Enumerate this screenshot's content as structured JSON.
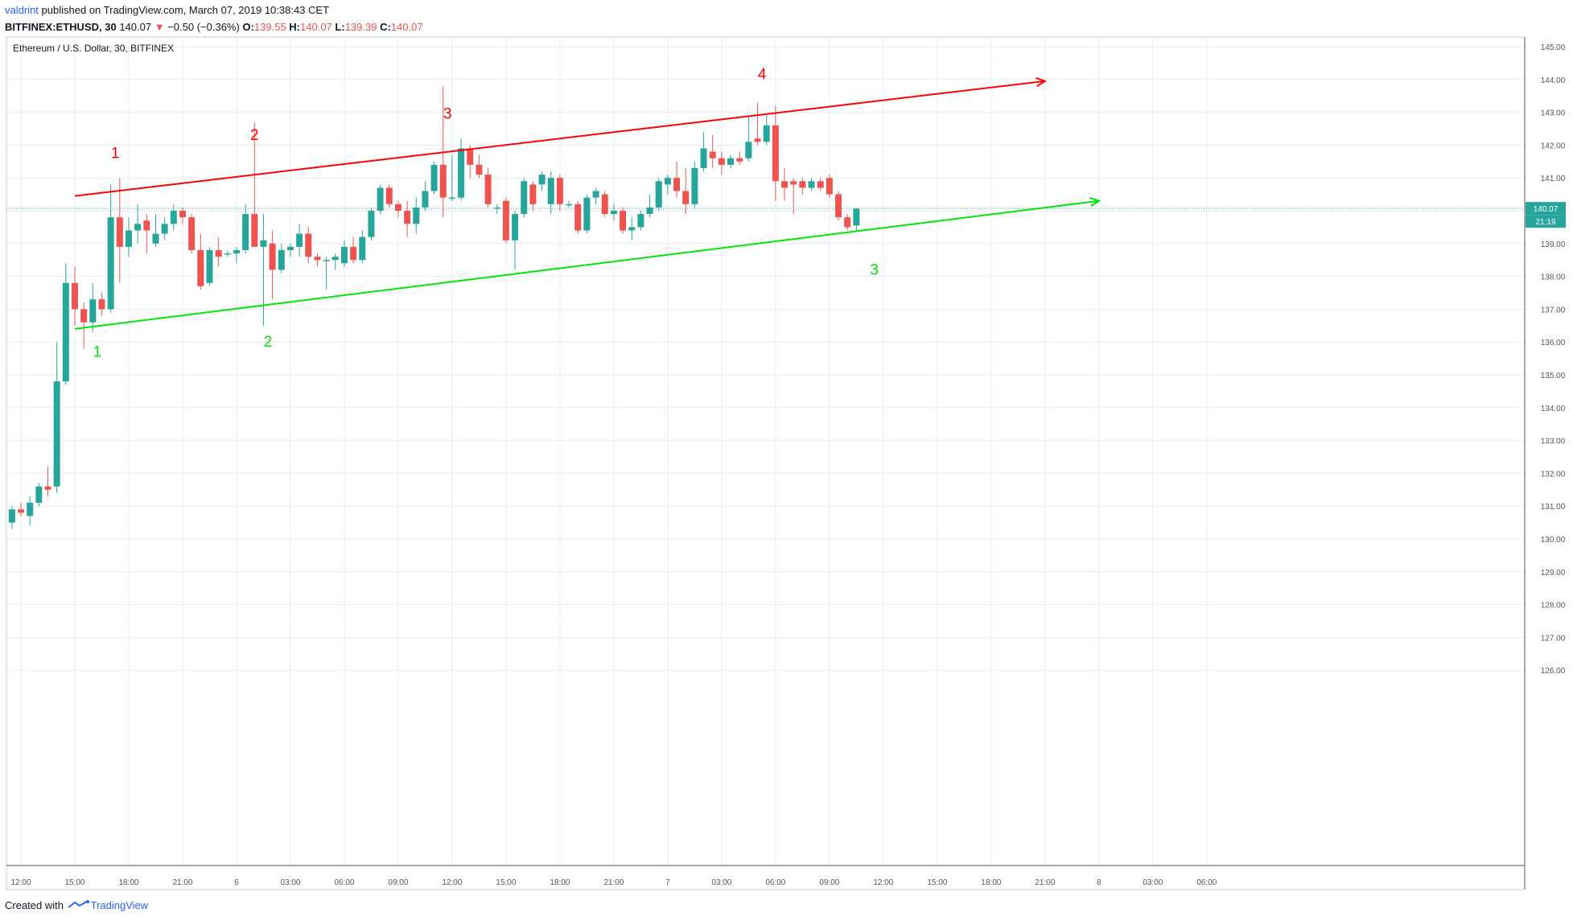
{
  "header": {
    "user": "valdrint",
    "published": "published on TradingView.com, March 07, 2019 10:38:43 CET",
    "symbol": "BITFINEX:ETHUSD, 30",
    "last": "140.07",
    "change_arrow": "▼",
    "change": "−0.50 (−0.36%)",
    "o_label": "O:",
    "o_val": "139.55",
    "h_label": "H:",
    "h_val": "140.07",
    "l_label": "L:",
    "l_val": "139.39",
    "c_label": "C:",
    "c_val": "140.07"
  },
  "chart_title": "Ethereum / U.S. Dollar, 30, BITFINEX",
  "footer": {
    "created": "Created with",
    "brand": "TradingView",
    "logo": "tradingview-logo-icon"
  },
  "colors": {
    "up": "#26a69a",
    "down": "#ef5350",
    "resistance": "#ff0000",
    "support": "#00e600",
    "grid": "#e6eef2",
    "price_line": "#26a69a",
    "axis": "#555555"
  },
  "chart_data": {
    "type": "candlestick",
    "title": "Ethereum / U.S. Dollar, 30, BITFINEX",
    "interval_minutes": 30,
    "grid": true,
    "ylim": [
      125,
      145.5
    ],
    "y_ticks": [
      "145.00",
      "144.00",
      "143.00",
      "142.00",
      "141.00",
      "140.00",
      "139.00",
      "138.00",
      "137.00",
      "136.00",
      "135.00",
      "134.00",
      "133.00",
      "132.00",
      "131.00",
      "130.00",
      "129.00",
      "128.00",
      "127.00",
      "126.00"
    ],
    "x_ticks": [
      {
        "label": "12:00",
        "t": "2019-03-05 12:00"
      },
      {
        "label": "15:00",
        "t": "2019-03-05 15:00"
      },
      {
        "label": "18:00",
        "t": "2019-03-05 18:00"
      },
      {
        "label": "21:00",
        "t": "2019-03-05 21:00"
      },
      {
        "label": "6",
        "t": "2019-03-06 00:00"
      },
      {
        "label": "03:00",
        "t": "2019-03-06 03:00"
      },
      {
        "label": "06:00",
        "t": "2019-03-06 06:00"
      },
      {
        "label": "09:00",
        "t": "2019-03-06 09:00"
      },
      {
        "label": "12:00",
        "t": "2019-03-06 12:00"
      },
      {
        "label": "15:00",
        "t": "2019-03-06 15:00"
      },
      {
        "label": "18:00",
        "t": "2019-03-06 18:00"
      },
      {
        "label": "21:00",
        "t": "2019-03-06 21:00"
      },
      {
        "label": "7",
        "t": "2019-03-07 00:00"
      },
      {
        "label": "03:00",
        "t": "2019-03-07 03:00"
      },
      {
        "label": "06:00",
        "t": "2019-03-07 06:00"
      },
      {
        "label": "09:00",
        "t": "2019-03-07 09:00"
      },
      {
        "label": "12:00",
        "t": "2019-03-07 12:00"
      },
      {
        "label": "15:00",
        "t": "2019-03-07 15:00"
      },
      {
        "label": "18:00",
        "t": "2019-03-07 18:00"
      },
      {
        "label": "21:00",
        "t": "2019-03-07 21:00"
      },
      {
        "label": "8",
        "t": "2019-03-08 00:00"
      },
      {
        "label": "03:00",
        "t": "2019-03-08 03:00"
      },
      {
        "label": "06:00",
        "t": "2019-03-08 06:00"
      }
    ],
    "last_price": {
      "value": 140.07,
      "label": "140.07",
      "countdown": "21:19"
    },
    "candles": [
      {
        "t": "2019-03-05 11:30",
        "o": 130.5,
        "h": 131.0,
        "l": 130.3,
        "c": 130.9
      },
      {
        "t": "2019-03-05 12:00",
        "o": 130.9,
        "h": 131.1,
        "l": 130.7,
        "c": 130.8
      },
      {
        "t": "2019-03-05 12:30",
        "o": 130.7,
        "h": 131.3,
        "l": 130.4,
        "c": 131.1
      },
      {
        "t": "2019-03-05 13:00",
        "o": 131.1,
        "h": 131.7,
        "l": 131.0,
        "c": 131.6
      },
      {
        "t": "2019-03-05 13:30",
        "o": 131.6,
        "h": 132.2,
        "l": 131.3,
        "c": 131.5
      },
      {
        "t": "2019-03-05 14:00",
        "o": 131.6,
        "h": 136.0,
        "l": 131.4,
        "c": 134.8
      },
      {
        "t": "2019-03-05 14:30",
        "o": 134.8,
        "h": 138.4,
        "l": 134.7,
        "c": 137.8
      },
      {
        "t": "2019-03-05 15:00",
        "o": 137.8,
        "h": 138.3,
        "l": 136.5,
        "c": 137.0
      },
      {
        "t": "2019-03-05 15:30",
        "o": 137.0,
        "h": 137.2,
        "l": 135.8,
        "c": 136.6
      },
      {
        "t": "2019-03-05 16:00",
        "o": 136.6,
        "h": 137.8,
        "l": 136.3,
        "c": 137.3
      },
      {
        "t": "2019-03-05 16:30",
        "o": 137.3,
        "h": 137.5,
        "l": 136.8,
        "c": 137.0
      },
      {
        "t": "2019-03-05 17:00",
        "o": 137.0,
        "h": 140.8,
        "l": 136.9,
        "c": 139.8
      },
      {
        "t": "2019-03-05 17:30",
        "o": 139.8,
        "h": 141.0,
        "l": 137.8,
        "c": 138.9
      },
      {
        "t": "2019-03-05 18:00",
        "o": 138.9,
        "h": 139.8,
        "l": 138.6,
        "c": 139.4
      },
      {
        "t": "2019-03-05 18:30",
        "o": 139.4,
        "h": 140.2,
        "l": 139.0,
        "c": 139.6
      },
      {
        "t": "2019-03-05 19:00",
        "o": 139.7,
        "h": 139.9,
        "l": 138.7,
        "c": 139.4
      },
      {
        "t": "2019-03-05 19:30",
        "o": 139.0,
        "h": 139.9,
        "l": 138.9,
        "c": 139.3
      },
      {
        "t": "2019-03-05 20:00",
        "o": 139.3,
        "h": 139.8,
        "l": 139.1,
        "c": 139.6
      },
      {
        "t": "2019-03-05 20:30",
        "o": 139.6,
        "h": 140.2,
        "l": 139.4,
        "c": 140.0
      },
      {
        "t": "2019-03-05 21:00",
        "o": 140.0,
        "h": 140.1,
        "l": 139.6,
        "c": 139.8
      },
      {
        "t": "2019-03-05 21:30",
        "o": 139.8,
        "h": 139.9,
        "l": 138.7,
        "c": 138.8
      },
      {
        "t": "2019-03-05 22:00",
        "o": 138.8,
        "h": 139.3,
        "l": 137.6,
        "c": 137.7
      },
      {
        "t": "2019-03-05 22:30",
        "o": 137.8,
        "h": 138.9,
        "l": 137.7,
        "c": 138.8
      },
      {
        "t": "2019-03-05 23:00",
        "o": 138.8,
        "h": 139.2,
        "l": 138.3,
        "c": 138.6
      },
      {
        "t": "2019-03-05 23:30",
        "o": 138.7,
        "h": 138.8,
        "l": 138.6,
        "c": 138.7
      },
      {
        "t": "2019-03-06 00:00",
        "o": 138.7,
        "h": 138.9,
        "l": 138.4,
        "c": 138.8
      },
      {
        "t": "2019-03-06 00:30",
        "o": 138.8,
        "h": 140.2,
        "l": 138.7,
        "c": 139.9
      },
      {
        "t": "2019-03-06 01:00",
        "o": 139.9,
        "h": 142.7,
        "l": 138.9,
        "c": 138.9
      },
      {
        "t": "2019-03-06 01:30",
        "o": 138.9,
        "h": 139.9,
        "l": 136.5,
        "c": 139.1
      },
      {
        "t": "2019-03-06 02:00",
        "o": 139.0,
        "h": 139.4,
        "l": 137.3,
        "c": 138.2
      },
      {
        "t": "2019-03-06 02:30",
        "o": 138.2,
        "h": 139.0,
        "l": 138.1,
        "c": 138.8
      },
      {
        "t": "2019-03-06 03:00",
        "o": 138.8,
        "h": 139.0,
        "l": 138.6,
        "c": 138.9
      },
      {
        "t": "2019-03-06 03:30",
        "o": 138.9,
        "h": 139.6,
        "l": 138.6,
        "c": 139.3
      },
      {
        "t": "2019-03-06 04:00",
        "o": 139.3,
        "h": 139.5,
        "l": 138.4,
        "c": 138.6
      },
      {
        "t": "2019-03-06 04:30",
        "o": 138.6,
        "h": 138.7,
        "l": 138.3,
        "c": 138.5
      },
      {
        "t": "2019-03-06 05:00",
        "o": 138.5,
        "h": 138.6,
        "l": 137.6,
        "c": 138.5
      },
      {
        "t": "2019-03-06 05:30",
        "o": 138.5,
        "h": 138.7,
        "l": 138.2,
        "c": 138.6
      },
      {
        "t": "2019-03-06 06:00",
        "o": 138.4,
        "h": 139.1,
        "l": 138.3,
        "c": 138.9
      },
      {
        "t": "2019-03-06 06:30",
        "o": 138.9,
        "h": 139.2,
        "l": 138.4,
        "c": 138.5
      },
      {
        "t": "2019-03-06 07:00",
        "o": 138.5,
        "h": 139.4,
        "l": 138.4,
        "c": 139.2
      },
      {
        "t": "2019-03-06 07:30",
        "o": 139.2,
        "h": 140.1,
        "l": 139.1,
        "c": 140.0
      },
      {
        "t": "2019-03-06 08:00",
        "o": 140.0,
        "h": 140.8,
        "l": 139.9,
        "c": 140.7
      },
      {
        "t": "2019-03-06 08:30",
        "o": 140.7,
        "h": 140.8,
        "l": 140.1,
        "c": 140.2
      },
      {
        "t": "2019-03-06 09:00",
        "o": 140.2,
        "h": 140.3,
        "l": 139.8,
        "c": 140.0
      },
      {
        "t": "2019-03-06 09:30",
        "o": 140.0,
        "h": 140.3,
        "l": 139.2,
        "c": 139.6
      },
      {
        "t": "2019-03-06 10:00",
        "o": 139.6,
        "h": 140.4,
        "l": 139.3,
        "c": 140.1
      },
      {
        "t": "2019-03-06 10:30",
        "o": 140.1,
        "h": 140.9,
        "l": 140.0,
        "c": 140.6
      },
      {
        "t": "2019-03-06 11:00",
        "o": 140.6,
        "h": 141.5,
        "l": 140.5,
        "c": 141.4
      },
      {
        "t": "2019-03-06 11:30",
        "o": 141.4,
        "h": 143.8,
        "l": 139.8,
        "c": 140.4
      },
      {
        "t": "2019-03-06 12:00",
        "o": 140.4,
        "h": 141.7,
        "l": 140.3,
        "c": 140.4
      },
      {
        "t": "2019-03-06 12:30",
        "o": 140.4,
        "h": 142.2,
        "l": 140.3,
        "c": 141.9
      },
      {
        "t": "2019-03-06 13:00",
        "o": 141.9,
        "h": 142.0,
        "l": 141.0,
        "c": 141.4
      },
      {
        "t": "2019-03-06 13:30",
        "o": 141.4,
        "h": 141.7,
        "l": 141.0,
        "c": 141.1
      },
      {
        "t": "2019-03-06 14:00",
        "o": 141.1,
        "h": 141.3,
        "l": 140.1,
        "c": 140.2
      },
      {
        "t": "2019-03-06 14:30",
        "o": 140.1,
        "h": 140.2,
        "l": 139.9,
        "c": 140.1
      },
      {
        "t": "2019-03-06 15:00",
        "o": 140.3,
        "h": 140.4,
        "l": 139.0,
        "c": 139.1
      },
      {
        "t": "2019-03-06 15:30",
        "o": 139.1,
        "h": 140.0,
        "l": 138.2,
        "c": 139.9
      },
      {
        "t": "2019-03-06 16:00",
        "o": 139.9,
        "h": 141.0,
        "l": 139.8,
        "c": 140.9
      },
      {
        "t": "2019-03-06 16:30",
        "o": 140.8,
        "h": 140.9,
        "l": 140.0,
        "c": 140.2
      },
      {
        "t": "2019-03-06 17:00",
        "o": 140.8,
        "h": 141.2,
        "l": 140.6,
        "c": 141.1
      },
      {
        "t": "2019-03-06 17:30",
        "o": 140.2,
        "h": 141.2,
        "l": 139.9,
        "c": 141.0
      },
      {
        "t": "2019-03-06 18:00",
        "o": 141.0,
        "h": 141.1,
        "l": 140.0,
        "c": 140.2
      },
      {
        "t": "2019-03-06 18:30",
        "o": 140.2,
        "h": 140.3,
        "l": 140.1,
        "c": 140.2
      },
      {
        "t": "2019-03-06 19:00",
        "o": 140.2,
        "h": 140.3,
        "l": 139.3,
        "c": 139.4
      },
      {
        "t": "2019-03-06 19:30",
        "o": 139.4,
        "h": 140.5,
        "l": 139.3,
        "c": 140.4
      },
      {
        "t": "2019-03-06 20:00",
        "o": 140.4,
        "h": 140.7,
        "l": 140.2,
        "c": 140.6
      },
      {
        "t": "2019-03-06 20:30",
        "o": 140.5,
        "h": 140.6,
        "l": 139.8,
        "c": 139.9
      },
      {
        "t": "2019-03-06 21:00",
        "o": 139.9,
        "h": 140.2,
        "l": 139.7,
        "c": 140.0
      },
      {
        "t": "2019-03-06 21:30",
        "o": 140.0,
        "h": 140.1,
        "l": 139.3,
        "c": 139.4
      },
      {
        "t": "2019-03-06 22:00",
        "o": 139.4,
        "h": 139.8,
        "l": 139.1,
        "c": 139.5
      },
      {
        "t": "2019-03-06 22:30",
        "o": 139.5,
        "h": 140.0,
        "l": 139.4,
        "c": 139.9
      },
      {
        "t": "2019-03-06 23:00",
        "o": 139.9,
        "h": 140.5,
        "l": 139.8,
        "c": 140.1
      },
      {
        "t": "2019-03-06 23:30",
        "o": 140.1,
        "h": 141.0,
        "l": 140.0,
        "c": 140.9
      },
      {
        "t": "2019-03-07 00:00",
        "o": 140.8,
        "h": 141.1,
        "l": 140.5,
        "c": 141.0
      },
      {
        "t": "2019-03-07 00:30",
        "o": 141.0,
        "h": 141.5,
        "l": 140.4,
        "c": 140.6
      },
      {
        "t": "2019-03-07 01:00",
        "o": 140.6,
        "h": 141.3,
        "l": 139.9,
        "c": 140.2
      },
      {
        "t": "2019-03-07 01:30",
        "o": 140.2,
        "h": 141.5,
        "l": 140.1,
        "c": 141.3
      },
      {
        "t": "2019-03-07 02:00",
        "o": 141.3,
        "h": 142.4,
        "l": 141.2,
        "c": 141.9
      },
      {
        "t": "2019-03-07 02:30",
        "o": 141.8,
        "h": 142.3,
        "l": 141.3,
        "c": 141.6
      },
      {
        "t": "2019-03-07 03:00",
        "o": 141.6,
        "h": 141.8,
        "l": 141.1,
        "c": 141.4
      },
      {
        "t": "2019-03-07 03:30",
        "o": 141.4,
        "h": 141.7,
        "l": 141.3,
        "c": 141.6
      },
      {
        "t": "2019-03-07 04:00",
        "o": 141.6,
        "h": 141.8,
        "l": 141.4,
        "c": 141.5
      },
      {
        "t": "2019-03-07 04:30",
        "o": 141.6,
        "h": 142.9,
        "l": 141.5,
        "c": 142.1
      },
      {
        "t": "2019-03-07 05:00",
        "o": 142.2,
        "h": 143.3,
        "l": 142.0,
        "c": 142.1
      },
      {
        "t": "2019-03-07 05:30",
        "o": 142.1,
        "h": 142.9,
        "l": 142.0,
        "c": 142.6
      },
      {
        "t": "2019-03-07 06:00",
        "o": 142.6,
        "h": 143.2,
        "l": 140.3,
        "c": 140.9
      },
      {
        "t": "2019-03-07 06:30",
        "o": 140.9,
        "h": 141.3,
        "l": 140.3,
        "c": 140.7
      },
      {
        "t": "2019-03-07 07:00",
        "o": 140.9,
        "h": 141.0,
        "l": 139.9,
        "c": 140.8
      },
      {
        "t": "2019-03-07 07:30",
        "o": 140.9,
        "h": 141.0,
        "l": 140.5,
        "c": 140.7
      },
      {
        "t": "2019-03-07 08:00",
        "o": 140.7,
        "h": 141.0,
        "l": 140.6,
        "c": 140.9
      },
      {
        "t": "2019-03-07 08:30",
        "o": 140.9,
        "h": 141.0,
        "l": 140.6,
        "c": 140.7
      },
      {
        "t": "2019-03-07 09:00",
        "o": 141.0,
        "h": 141.1,
        "l": 140.4,
        "c": 140.5
      },
      {
        "t": "2019-03-07 09:30",
        "o": 140.5,
        "h": 140.6,
        "l": 139.7,
        "c": 139.8
      },
      {
        "t": "2019-03-07 10:00",
        "o": 139.8,
        "h": 139.9,
        "l": 139.4,
        "c": 139.5
      },
      {
        "t": "2019-03-07 10:30",
        "o": 139.55,
        "h": 140.07,
        "l": 139.39,
        "c": 140.07
      }
    ],
    "trendlines": [
      {
        "name": "resistance",
        "color": "#ff0000",
        "start": {
          "t": "2019-03-05 15:00",
          "p": 140.45
        },
        "end": {
          "t": "2019-03-07 21:00",
          "p": 143.95
        },
        "arrow": true
      },
      {
        "name": "support",
        "color": "#00e600",
        "start": {
          "t": "2019-03-05 15:00",
          "p": 136.4
        },
        "end": {
          "t": "2019-03-08 00:00",
          "p": 140.3
        },
        "arrow": true
      }
    ],
    "annotations": [
      {
        "text": "1",
        "color": "#ff0000",
        "t": "2019-03-05 17:15",
        "p": 141.75
      },
      {
        "text": "2",
        "color": "#ff0000",
        "t": "2019-03-06 01:00",
        "p": 142.3
      },
      {
        "text": "3",
        "color": "#ff0000",
        "t": "2019-03-06 11:45",
        "p": 142.95
      },
      {
        "text": "4",
        "color": "#ff0000",
        "t": "2019-03-07 05:15",
        "p": 144.15
      },
      {
        "text": "1",
        "color": "#00e600",
        "t": "2019-03-05 16:15",
        "p": 135.7
      },
      {
        "text": "2",
        "color": "#00e600",
        "t": "2019-03-06 01:45",
        "p": 136.0
      },
      {
        "text": "3",
        "color": "#00e600",
        "t": "2019-03-07 11:30",
        "p": 138.2
      }
    ]
  }
}
